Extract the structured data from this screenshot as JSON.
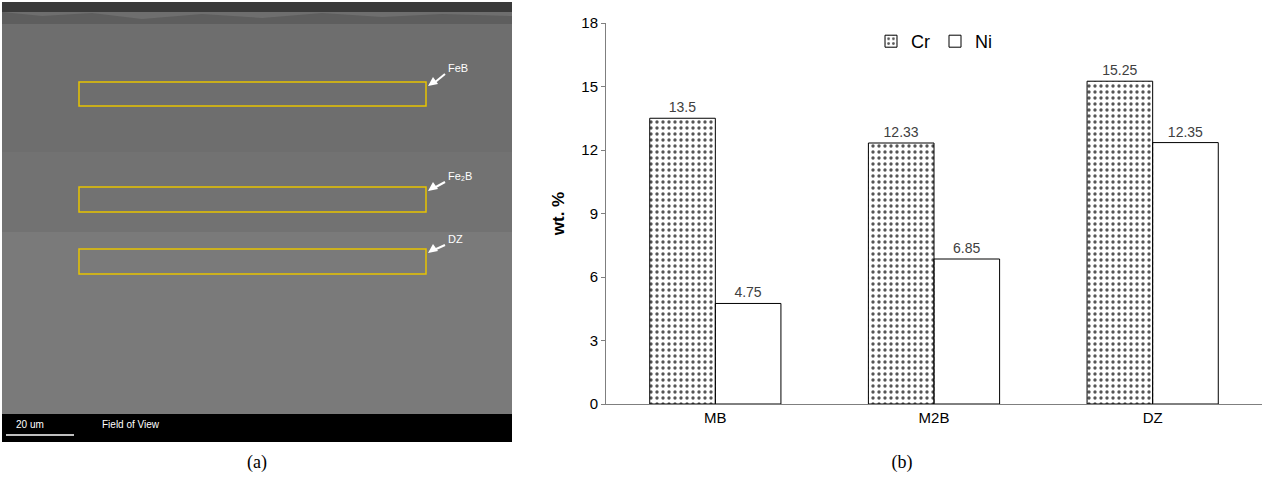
{
  "panels": {
    "a": {
      "caption": "(a)",
      "regions": [
        "FeB",
        "Fe₂B",
        "DZ"
      ],
      "scale_bar": "20 um",
      "footer": "Field of View"
    },
    "b": {
      "caption": "(b)"
    }
  },
  "chart_data": {
    "type": "bar",
    "categories": [
      "MB",
      "M2B",
      "DZ"
    ],
    "series": [
      {
        "name": "Cr",
        "color": "#d9d9d9",
        "values": [
          13.5,
          12.33,
          15.25
        ]
      },
      {
        "name": "Ni",
        "color": "#000000",
        "values": [
          4.75,
          6.85,
          12.35
        ]
      }
    ],
    "y_label": "wt. %",
    "ylim": [
      0,
      18
    ],
    "yticks": [
      0,
      3,
      6,
      9,
      12,
      15,
      18
    ],
    "grid": false,
    "legend": "top",
    "data_labels": true
  }
}
